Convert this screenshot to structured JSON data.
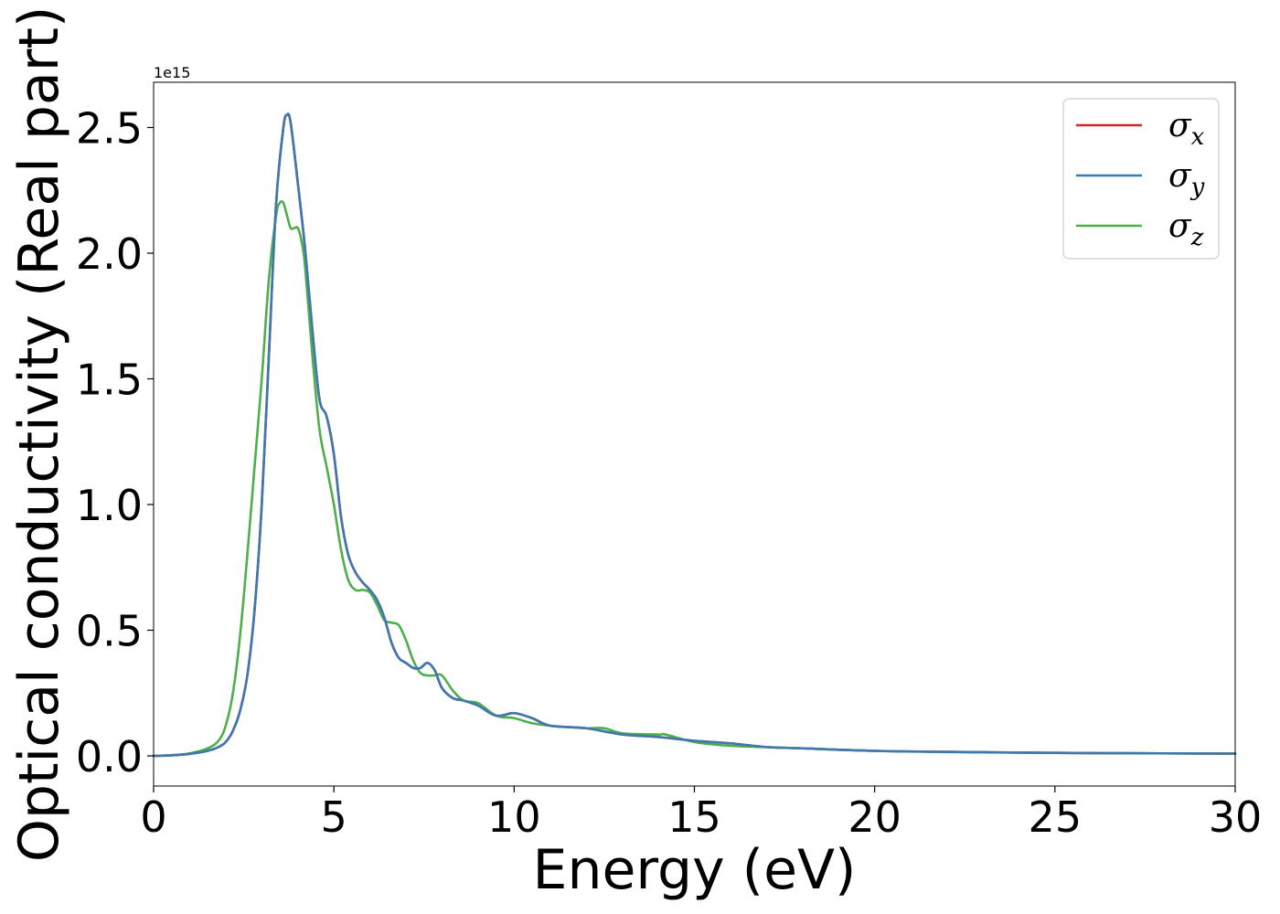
{
  "chart_data": {
    "type": "line",
    "title": "",
    "xlabel": "Energy (eV)",
    "ylabel": "Optical conductivity (Real part)",
    "y_offset_label": "1e15",
    "xlim": [
      0,
      30
    ],
    "ylim": [
      -0.12,
      2.68
    ],
    "x_ticks": [
      0,
      5,
      10,
      15,
      20,
      25,
      30
    ],
    "x_tick_labels": [
      "0",
      "5",
      "10",
      "15",
      "20",
      "25",
      "30"
    ],
    "y_ticks": [
      0.0,
      0.5,
      1.0,
      1.5,
      2.0,
      2.5
    ],
    "y_tick_labels": [
      "0.0",
      "0.5",
      "1.0",
      "1.5",
      "2.0",
      "2.5"
    ],
    "grid": false,
    "legend_position": "top-right",
    "series": [
      {
        "name": "σx",
        "legend_base": "σ",
        "legend_sub": "x",
        "color": "#d62728",
        "x": [
          0,
          0.5,
          1.0,
          1.5,
          1.8,
          2.0,
          2.2,
          2.4,
          2.6,
          2.8,
          3.0,
          3.2,
          3.4,
          3.6,
          3.7,
          3.8,
          4.0,
          4.2,
          4.4,
          4.6,
          4.8,
          5.0,
          5.2,
          5.4,
          5.6,
          5.8,
          6.0,
          6.2,
          6.4,
          6.6,
          6.8,
          7.0,
          7.2,
          7.4,
          7.6,
          7.8,
          8.0,
          8.3,
          8.6,
          9.0,
          9.5,
          10.0,
          10.5,
          11.0,
          12.0,
          13.0,
          14.0,
          15.0,
          16.0,
          17.0,
          18.0,
          20.0,
          22.0,
          25.0,
          28.0,
          30.0
        ],
        "y": [
          0.0,
          0.002,
          0.008,
          0.02,
          0.035,
          0.055,
          0.1,
          0.18,
          0.32,
          0.58,
          1.0,
          1.6,
          2.2,
          2.5,
          2.55,
          2.52,
          2.28,
          2.02,
          1.7,
          1.42,
          1.35,
          1.2,
          0.95,
          0.8,
          0.73,
          0.69,
          0.66,
          0.62,
          0.55,
          0.45,
          0.39,
          0.37,
          0.35,
          0.35,
          0.37,
          0.34,
          0.27,
          0.23,
          0.22,
          0.2,
          0.16,
          0.17,
          0.15,
          0.12,
          0.11,
          0.085,
          0.075,
          0.06,
          0.05,
          0.035,
          0.03,
          0.02,
          0.016,
          0.012,
          0.01,
          0.009
        ]
      },
      {
        "name": "σy",
        "legend_base": "σ",
        "legend_sub": "y",
        "color": "#3d78b0",
        "x": [
          0,
          0.5,
          1.0,
          1.5,
          1.8,
          2.0,
          2.2,
          2.4,
          2.6,
          2.8,
          3.0,
          3.2,
          3.4,
          3.6,
          3.7,
          3.8,
          4.0,
          4.2,
          4.4,
          4.6,
          4.8,
          5.0,
          5.2,
          5.4,
          5.6,
          5.8,
          6.0,
          6.2,
          6.4,
          6.6,
          6.8,
          7.0,
          7.2,
          7.4,
          7.6,
          7.8,
          8.0,
          8.3,
          8.6,
          9.0,
          9.5,
          10.0,
          10.5,
          11.0,
          12.0,
          13.0,
          14.0,
          15.0,
          16.0,
          17.0,
          18.0,
          20.0,
          22.0,
          25.0,
          28.0,
          30.0
        ],
        "y": [
          0.0,
          0.002,
          0.008,
          0.02,
          0.035,
          0.055,
          0.1,
          0.18,
          0.32,
          0.58,
          1.0,
          1.6,
          2.2,
          2.5,
          2.55,
          2.52,
          2.28,
          2.02,
          1.7,
          1.42,
          1.35,
          1.2,
          0.95,
          0.8,
          0.73,
          0.69,
          0.66,
          0.62,
          0.55,
          0.45,
          0.39,
          0.37,
          0.35,
          0.35,
          0.37,
          0.34,
          0.27,
          0.23,
          0.22,
          0.2,
          0.16,
          0.17,
          0.15,
          0.12,
          0.11,
          0.085,
          0.075,
          0.06,
          0.05,
          0.035,
          0.03,
          0.02,
          0.016,
          0.012,
          0.01,
          0.009
        ]
      },
      {
        "name": "σz",
        "legend_base": "σ",
        "legend_sub": "z",
        "color": "#4daf4a",
        "x": [
          0,
          0.5,
          1.0,
          1.5,
          1.8,
          2.0,
          2.2,
          2.4,
          2.6,
          2.8,
          3.0,
          3.2,
          3.4,
          3.5,
          3.6,
          3.7,
          3.8,
          3.9,
          4.0,
          4.1,
          4.2,
          4.4,
          4.6,
          4.8,
          5.0,
          5.2,
          5.4,
          5.6,
          5.8,
          6.0,
          6.2,
          6.4,
          6.6,
          6.8,
          7.0,
          7.2,
          7.4,
          7.6,
          7.8,
          8.0,
          8.3,
          8.6,
          9.0,
          9.5,
          10.0,
          10.5,
          11.0,
          12.0,
          12.5,
          13.0,
          14.0,
          14.2,
          15.0,
          16.0,
          17.0,
          18.0,
          20.0,
          22.0,
          25.0,
          28.0,
          30.0
        ],
        "y": [
          0.0,
          0.003,
          0.01,
          0.03,
          0.06,
          0.12,
          0.25,
          0.48,
          0.8,
          1.15,
          1.5,
          1.9,
          2.15,
          2.2,
          2.2,
          2.15,
          2.1,
          2.1,
          2.1,
          2.05,
          1.95,
          1.6,
          1.3,
          1.15,
          1.0,
          0.82,
          0.7,
          0.66,
          0.66,
          0.65,
          0.6,
          0.54,
          0.53,
          0.52,
          0.46,
          0.38,
          0.33,
          0.32,
          0.32,
          0.32,
          0.26,
          0.22,
          0.21,
          0.16,
          0.15,
          0.13,
          0.12,
          0.11,
          0.11,
          0.09,
          0.085,
          0.085,
          0.055,
          0.04,
          0.035,
          0.03,
          0.02,
          0.015,
          0.012,
          0.01,
          0.009
        ]
      }
    ]
  }
}
